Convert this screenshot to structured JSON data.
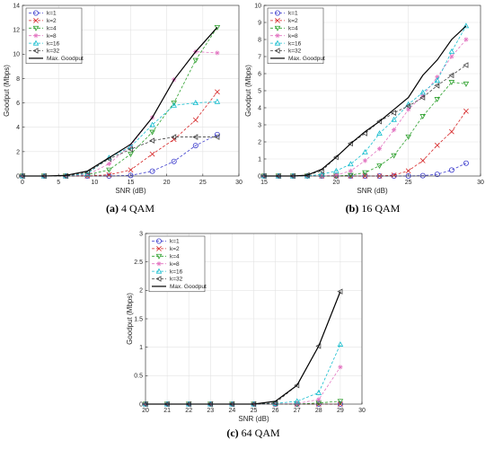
{
  "chart_data": [
    {
      "type": "line",
      "caption_letter": "(a)",
      "caption_text": "4 QAM",
      "xlabel": "SNR (dB)",
      "ylabel": "Goodput (Mbps)",
      "xlim": [
        0,
        30
      ],
      "ylim": [
        0,
        14
      ],
      "xticks": [
        0,
        5,
        10,
        15,
        20,
        25,
        30
      ],
      "yticks": [
        0,
        2,
        4,
        6,
        8,
        10,
        12,
        14
      ],
      "grid": true,
      "legend": "top-left",
      "x": [
        0,
        3,
        6,
        9,
        12,
        15,
        18,
        21,
        24,
        27
      ],
      "series": [
        {
          "name": "k=1",
          "color": "#3b3bcc",
          "marker": "circle",
          "dash": true,
          "values": [
            0,
            0,
            0,
            0,
            0,
            0.05,
            0.4,
            1.2,
            2.5,
            3.4
          ]
        },
        {
          "name": "k=2",
          "color": "#d62728",
          "marker": "x",
          "dash": true,
          "values": [
            0,
            0,
            0,
            0,
            0.1,
            0.5,
            1.8,
            3.0,
            4.6,
            6.9
          ]
        },
        {
          "name": "k=4",
          "color": "#2ca02c",
          "marker": "triangle-down",
          "dash": true,
          "values": [
            0,
            0,
            0,
            0.1,
            0.5,
            1.8,
            3.6,
            6.0,
            9.5,
            12.2
          ]
        },
        {
          "name": "k=8",
          "color": "#e377c2",
          "marker": "star",
          "dash": true,
          "values": [
            0,
            0,
            0,
            0.1,
            1.0,
            2.5,
            4.8,
            7.9,
            10.2,
            10.1
          ]
        },
        {
          "name": "k=16",
          "color": "#17becf",
          "marker": "triangle-up",
          "dash": true,
          "values": [
            0,
            0,
            0,
            0.2,
            1.5,
            2.4,
            4.2,
            5.8,
            6.0,
            6.1
          ]
        },
        {
          "name": "k=32",
          "color": "#404040",
          "marker": "triangle-left",
          "dash": true,
          "values": [
            0,
            0,
            0,
            0.3,
            1.4,
            2.2,
            2.9,
            3.2,
            3.2,
            3.2
          ]
        },
        {
          "name": "Max. Goodput",
          "color": "#000000",
          "marker": "none",
          "dash": false,
          "values": [
            0,
            0,
            0.05,
            0.4,
            1.5,
            2.6,
            4.8,
            7.9,
            10.2,
            12.2
          ]
        }
      ]
    },
    {
      "type": "line",
      "caption_letter": "(b)",
      "caption_text": "16 QAM",
      "xlabel": "SNR (dB)",
      "ylabel": "Goodput (Mbps)",
      "xlim": [
        15,
        30
      ],
      "ylim": [
        0,
        10
      ],
      "xticks": [
        15,
        20,
        25,
        30
      ],
      "yticks": [
        0,
        1,
        2,
        3,
        4,
        5,
        6,
        7,
        8,
        9,
        10
      ],
      "grid": true,
      "legend": "top-left",
      "x": [
        15,
        16,
        17,
        18,
        19,
        20,
        21,
        22,
        23,
        24,
        25,
        26,
        27,
        28,
        29
      ],
      "series": [
        {
          "name": "k=1",
          "color": "#3b3bcc",
          "marker": "circle",
          "dash": true,
          "values": [
            0,
            0,
            0,
            0,
            0,
            0,
            0,
            0,
            0,
            0,
            0,
            0.02,
            0.1,
            0.35,
            0.75
          ]
        },
        {
          "name": "k=2",
          "color": "#d62728",
          "marker": "x",
          "dash": true,
          "values": [
            0,
            0,
            0,
            0,
            0,
            0,
            0,
            0,
            0,
            0.05,
            0.3,
            0.9,
            1.8,
            2.6,
            3.8
          ]
        },
        {
          "name": "k=4",
          "color": "#2ca02c",
          "marker": "triangle-down",
          "dash": true,
          "values": [
            0,
            0,
            0,
            0,
            0,
            0,
            0.05,
            0.2,
            0.6,
            1.2,
            2.3,
            3.5,
            4.5,
            5.5,
            5.4
          ]
        },
        {
          "name": "k=8",
          "color": "#e377c2",
          "marker": "star",
          "dash": true,
          "values": [
            0,
            0,
            0,
            0,
            0,
            0.05,
            0.3,
            0.9,
            1.6,
            2.7,
            3.9,
            4.7,
            5.8,
            7.0,
            8.0
          ]
        },
        {
          "name": "k=16",
          "color": "#17becf",
          "marker": "triangle-up",
          "dash": true,
          "values": [
            0,
            0,
            0,
            0,
            0.1,
            0.3,
            0.7,
            1.4,
            2.5,
            3.3,
            4.2,
            4.9,
            5.6,
            7.3,
            8.8
          ]
        },
        {
          "name": "k=32",
          "color": "#404040",
          "marker": "triangle-left",
          "dash": true,
          "values": [
            0,
            0,
            0,
            0.05,
            0.3,
            1.1,
            1.9,
            2.5,
            3.2,
            3.7,
            4.1,
            4.6,
            5.3,
            5.9,
            6.5
          ]
        },
        {
          "name": "Max. Goodput",
          "color": "#000000",
          "marker": "none",
          "dash": false,
          "values": [
            0,
            0,
            0,
            0.05,
            0.4,
            1.1,
            1.9,
            2.6,
            3.2,
            3.9,
            4.6,
            5.9,
            6.8,
            8.0,
            8.8
          ]
        }
      ]
    },
    {
      "type": "line",
      "caption_letter": "(c)",
      "caption_text": "64 QAM",
      "xlabel": "SNR (dB)",
      "ylabel": "Goodput (Mbps)",
      "xlim": [
        20,
        30
      ],
      "ylim": [
        0,
        3
      ],
      "xticks": [
        20,
        21,
        22,
        23,
        24,
        25,
        26,
        27,
        28,
        29,
        30
      ],
      "yticks": [
        0,
        0.5,
        1,
        1.5,
        2,
        2.5,
        3
      ],
      "grid": true,
      "legend": "top-left",
      "x": [
        20,
        21,
        22,
        23,
        24,
        25,
        26,
        27,
        28,
        29
      ],
      "series": [
        {
          "name": "k=1",
          "color": "#3b3bcc",
          "marker": "circle",
          "dash": true,
          "values": [
            0,
            0,
            0,
            0,
            0,
            0,
            0,
            0,
            0,
            0
          ]
        },
        {
          "name": "k=2",
          "color": "#d62728",
          "marker": "x",
          "dash": true,
          "values": [
            0,
            0,
            0,
            0,
            0,
            0,
            0,
            0,
            0,
            0
          ]
        },
        {
          "name": "k=4",
          "color": "#2ca02c",
          "marker": "triangle-down",
          "dash": true,
          "values": [
            0,
            0,
            0,
            0,
            0,
            0,
            0,
            0,
            0.02,
            0.05
          ]
        },
        {
          "name": "k=8",
          "color": "#e377c2",
          "marker": "star",
          "dash": true,
          "values": [
            0,
            0,
            0,
            0,
            0,
            0,
            0,
            0.01,
            0.08,
            0.65
          ]
        },
        {
          "name": "k=16",
          "color": "#17becf",
          "marker": "triangle-up",
          "dash": true,
          "values": [
            0,
            0,
            0,
            0,
            0,
            0,
            0.01,
            0.05,
            0.2,
            1.05
          ]
        },
        {
          "name": "k=32",
          "color": "#404040",
          "marker": "triangle-left",
          "dash": true,
          "values": [
            0,
            0,
            0,
            0,
            0,
            0,
            0.02,
            0.33,
            1.02,
            1.98
          ]
        },
        {
          "name": "Max. Goodput",
          "color": "#000000",
          "marker": "none",
          "dash": false,
          "values": [
            0,
            0,
            0,
            0,
            0,
            0,
            0.05,
            0.33,
            1.02,
            1.98
          ]
        }
      ]
    }
  ]
}
